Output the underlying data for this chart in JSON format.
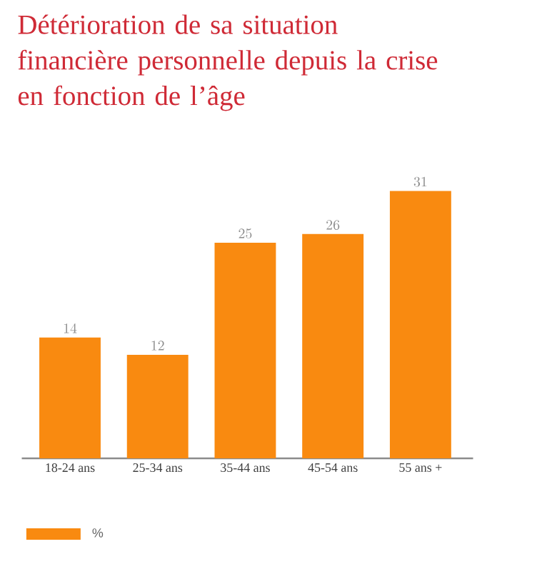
{
  "chart_data": {
    "type": "bar",
    "title": "Détérioration de sa situation financière personnelle depuis la crise en fonction de l’âge",
    "categories": [
      "18-24 ans",
      "25-34 ans",
      "35-44 ans",
      "45-54 ans",
      "55 ans +"
    ],
    "series": [
      {
        "name": "%",
        "color": "#f98a10",
        "values": [
          14,
          12,
          25,
          26,
          31
        ]
      }
    ],
    "tick_labels": "x",
    "data_labels": true,
    "legend": "bottom left"
  }
}
